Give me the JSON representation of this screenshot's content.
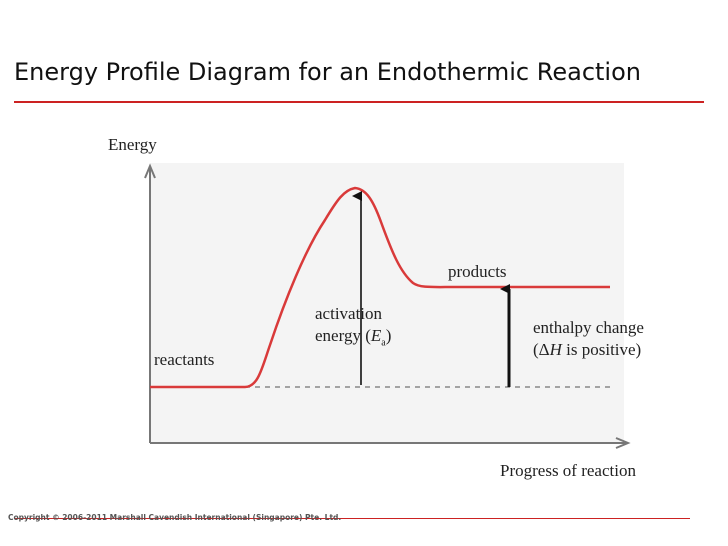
{
  "title": "Energy Profile Diagram for an Endothermic Reaction",
  "labels": {
    "y_axis": "Energy",
    "x_axis": "Progress of reaction",
    "reactants": "reactants",
    "products": "products",
    "activation_line1": "activation",
    "activation_line2_prefix": "energy (",
    "activation_symbol": "E",
    "activation_subscript": "a",
    "activation_suffix": ")",
    "enthalpy_line1": "enthalpy change",
    "enthalpy_open": "(",
    "enthalpy_delta": "Δ",
    "enthalpy_symbol": "H",
    "enthalpy_rest": " is positive)"
  },
  "copyright": "Copyright © 2006-2011 Marshall Cavendish International (Singapore) Pte. Ltd.",
  "colors": {
    "curve": "#d93a3a",
    "title_rule": "#cc2222",
    "axes": "#777777",
    "arrows": "#111111"
  }
}
